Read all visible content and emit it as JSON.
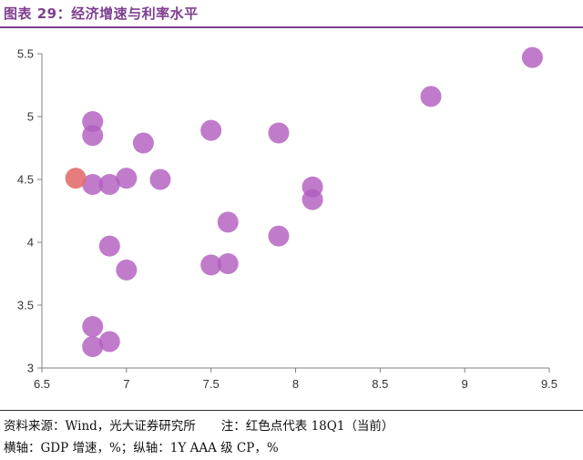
{
  "figure": {
    "title": "图表 29：经济增速与利率水平"
  },
  "colors": {
    "accent": "#7e3f8e",
    "point": "#b25ec0",
    "highlight": "#e36f6f"
  },
  "footnotes": {
    "source": "资料来源：Wind，光大证券研究所",
    "note": "注：红色点代表 18Q1（当前）",
    "axes": "横轴：GDP 增速，%；纵轴：1Y AAA 级 CP，%"
  },
  "chart_data": {
    "type": "scatter",
    "xlim": [
      6.5,
      9.5
    ],
    "ylim": [
      3,
      5.5
    ],
    "xticks": [
      6.5,
      7,
      7.5,
      8,
      8.5,
      9,
      9.5
    ],
    "yticks": [
      3,
      3.5,
      4,
      4.5,
      5,
      5.5
    ],
    "xtick_labels": [
      "6.5",
      "7",
      "7.5",
      "8",
      "8.5",
      "9",
      "9.5"
    ],
    "ytick_labels": [
      "3",
      "3.5",
      "4",
      "4.5",
      "5",
      "5.5"
    ],
    "grid": false,
    "legend": "none",
    "highlight": {
      "x": 6.7,
      "y": 4.51
    },
    "points": [
      {
        "x": 9.4,
        "y": 5.47
      },
      {
        "x": 8.8,
        "y": 5.16
      },
      {
        "x": 6.8,
        "y": 4.96
      },
      {
        "x": 6.8,
        "y": 4.85
      },
      {
        "x": 7.5,
        "y": 4.89
      },
      {
        "x": 7.9,
        "y": 4.87
      },
      {
        "x": 7.1,
        "y": 4.79
      },
      {
        "x": 6.8,
        "y": 4.46
      },
      {
        "x": 6.9,
        "y": 4.46
      },
      {
        "x": 7.0,
        "y": 4.51
      },
      {
        "x": 7.2,
        "y": 4.5
      },
      {
        "x": 8.1,
        "y": 4.44
      },
      {
        "x": 8.1,
        "y": 4.34
      },
      {
        "x": 7.6,
        "y": 4.16
      },
      {
        "x": 7.9,
        "y": 4.05
      },
      {
        "x": 6.9,
        "y": 3.97
      },
      {
        "x": 7.5,
        "y": 3.82
      },
      {
        "x": 7.6,
        "y": 3.83
      },
      {
        "x": 7.0,
        "y": 3.78
      },
      {
        "x": 6.8,
        "y": 3.33
      },
      {
        "x": 6.9,
        "y": 3.21
      },
      {
        "x": 6.8,
        "y": 3.17
      }
    ]
  }
}
